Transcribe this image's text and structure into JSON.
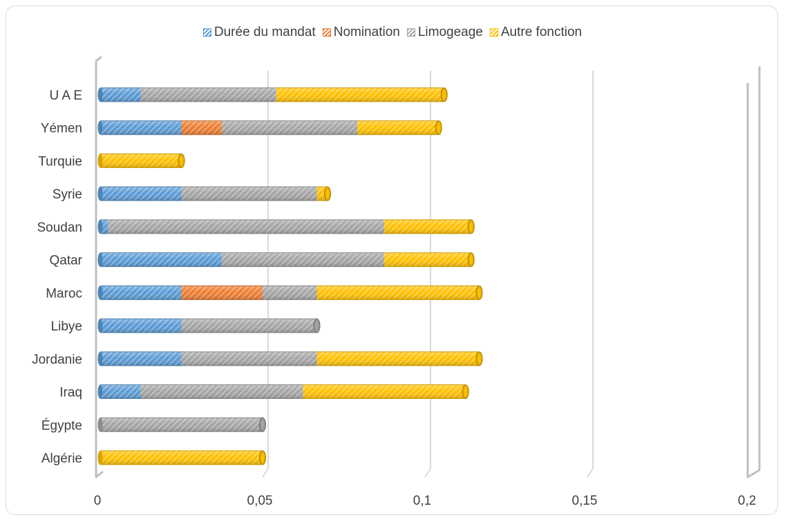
{
  "chart_data": {
    "type": "bar",
    "orientation": "horizontal",
    "stacked": true,
    "categories": [
      "Algérie",
      "Égypte",
      "Iraq",
      "Jordanie",
      "Libye",
      "Maroc",
      "Qatar",
      "Soudan",
      "Syrie",
      "Turquie",
      "Yémen",
      "U A E"
    ],
    "series": [
      {
        "name": "Durée du mandat",
        "color": "#5b9bd5",
        "values": [
          0,
          0,
          0.0125,
          0.025,
          0.025,
          0.025,
          0.0375,
          0.0025,
          0.025,
          0,
          0.025,
          0.0125
        ]
      },
      {
        "name": "Nomination",
        "color": "#ed7d31",
        "values": [
          0,
          0,
          0,
          0,
          0,
          0.025,
          0,
          0,
          0,
          0,
          0.0125,
          0
        ]
      },
      {
        "name": "Limogeage",
        "color": "#a5a5a5",
        "values": [
          0,
          0.05,
          0.05,
          0.0417,
          0.0417,
          0.0167,
          0.05,
          0.085,
          0.0417,
          0,
          0.0417,
          0.0417
        ]
      },
      {
        "name": "Autre fonction",
        "color": "#ffc000",
        "values": [
          0.05,
          0,
          0.05,
          0.05,
          0,
          0.05,
          0.0267,
          0.0267,
          0.0033,
          0.025,
          0.025,
          0.0517
        ]
      }
    ],
    "xlim": [
      0,
      0.2
    ],
    "xticks": [
      "0",
      "0,05",
      "0,1",
      "0,15",
      "0,2"
    ],
    "grid": true,
    "legend_position": "top",
    "style": "3d-cylinder"
  }
}
